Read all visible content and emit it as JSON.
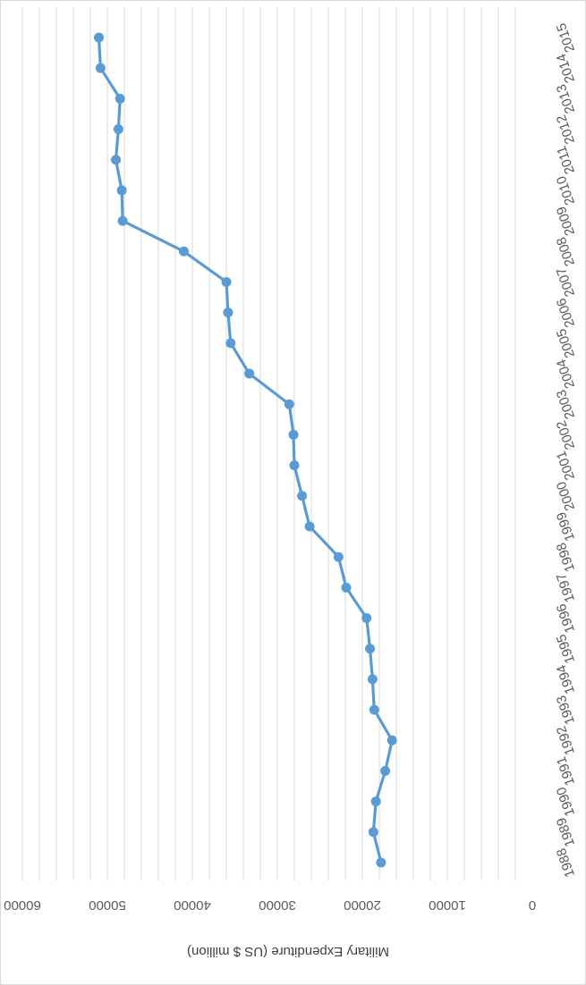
{
  "chart_data": {
    "type": "line",
    "title": "",
    "xlabel": "",
    "ylabel": "Military Expenditure (US $ million)",
    "ylim": [
      0,
      60000
    ],
    "yticks": [
      0,
      10000,
      20000,
      30000,
      40000,
      50000,
      60000
    ],
    "ytick_labels": [
      "0",
      "10000",
      "20000",
      "30000",
      "40000",
      "50000",
      "60000"
    ],
    "grid": true,
    "orientation": "rotated 180 degrees",
    "categories": [
      "1988",
      "1989",
      "1990",
      "1991",
      "1992",
      "1993",
      "1994",
      "1995",
      "1996",
      "1997",
      "1998",
      "1999",
      "2000",
      "2001",
      "2002",
      "2003",
      "2004",
      "2005",
      "2006",
      "2007",
      "2008",
      "2009",
      "2010",
      "2011",
      "2012",
      "2013",
      "2014",
      "2015"
    ],
    "series": [
      {
        "values": [
          17800,
          18700,
          18400,
          17300,
          16500,
          18600,
          18800,
          19100,
          19500,
          21900,
          22800,
          26200,
          27100,
          28000,
          28100,
          28600,
          33300,
          35500,
          35800,
          36000,
          41000,
          48200,
          48300,
          49000,
          48700,
          48500,
          50800,
          51000
        ],
        "color": "#5b9bd5"
      }
    ]
  }
}
